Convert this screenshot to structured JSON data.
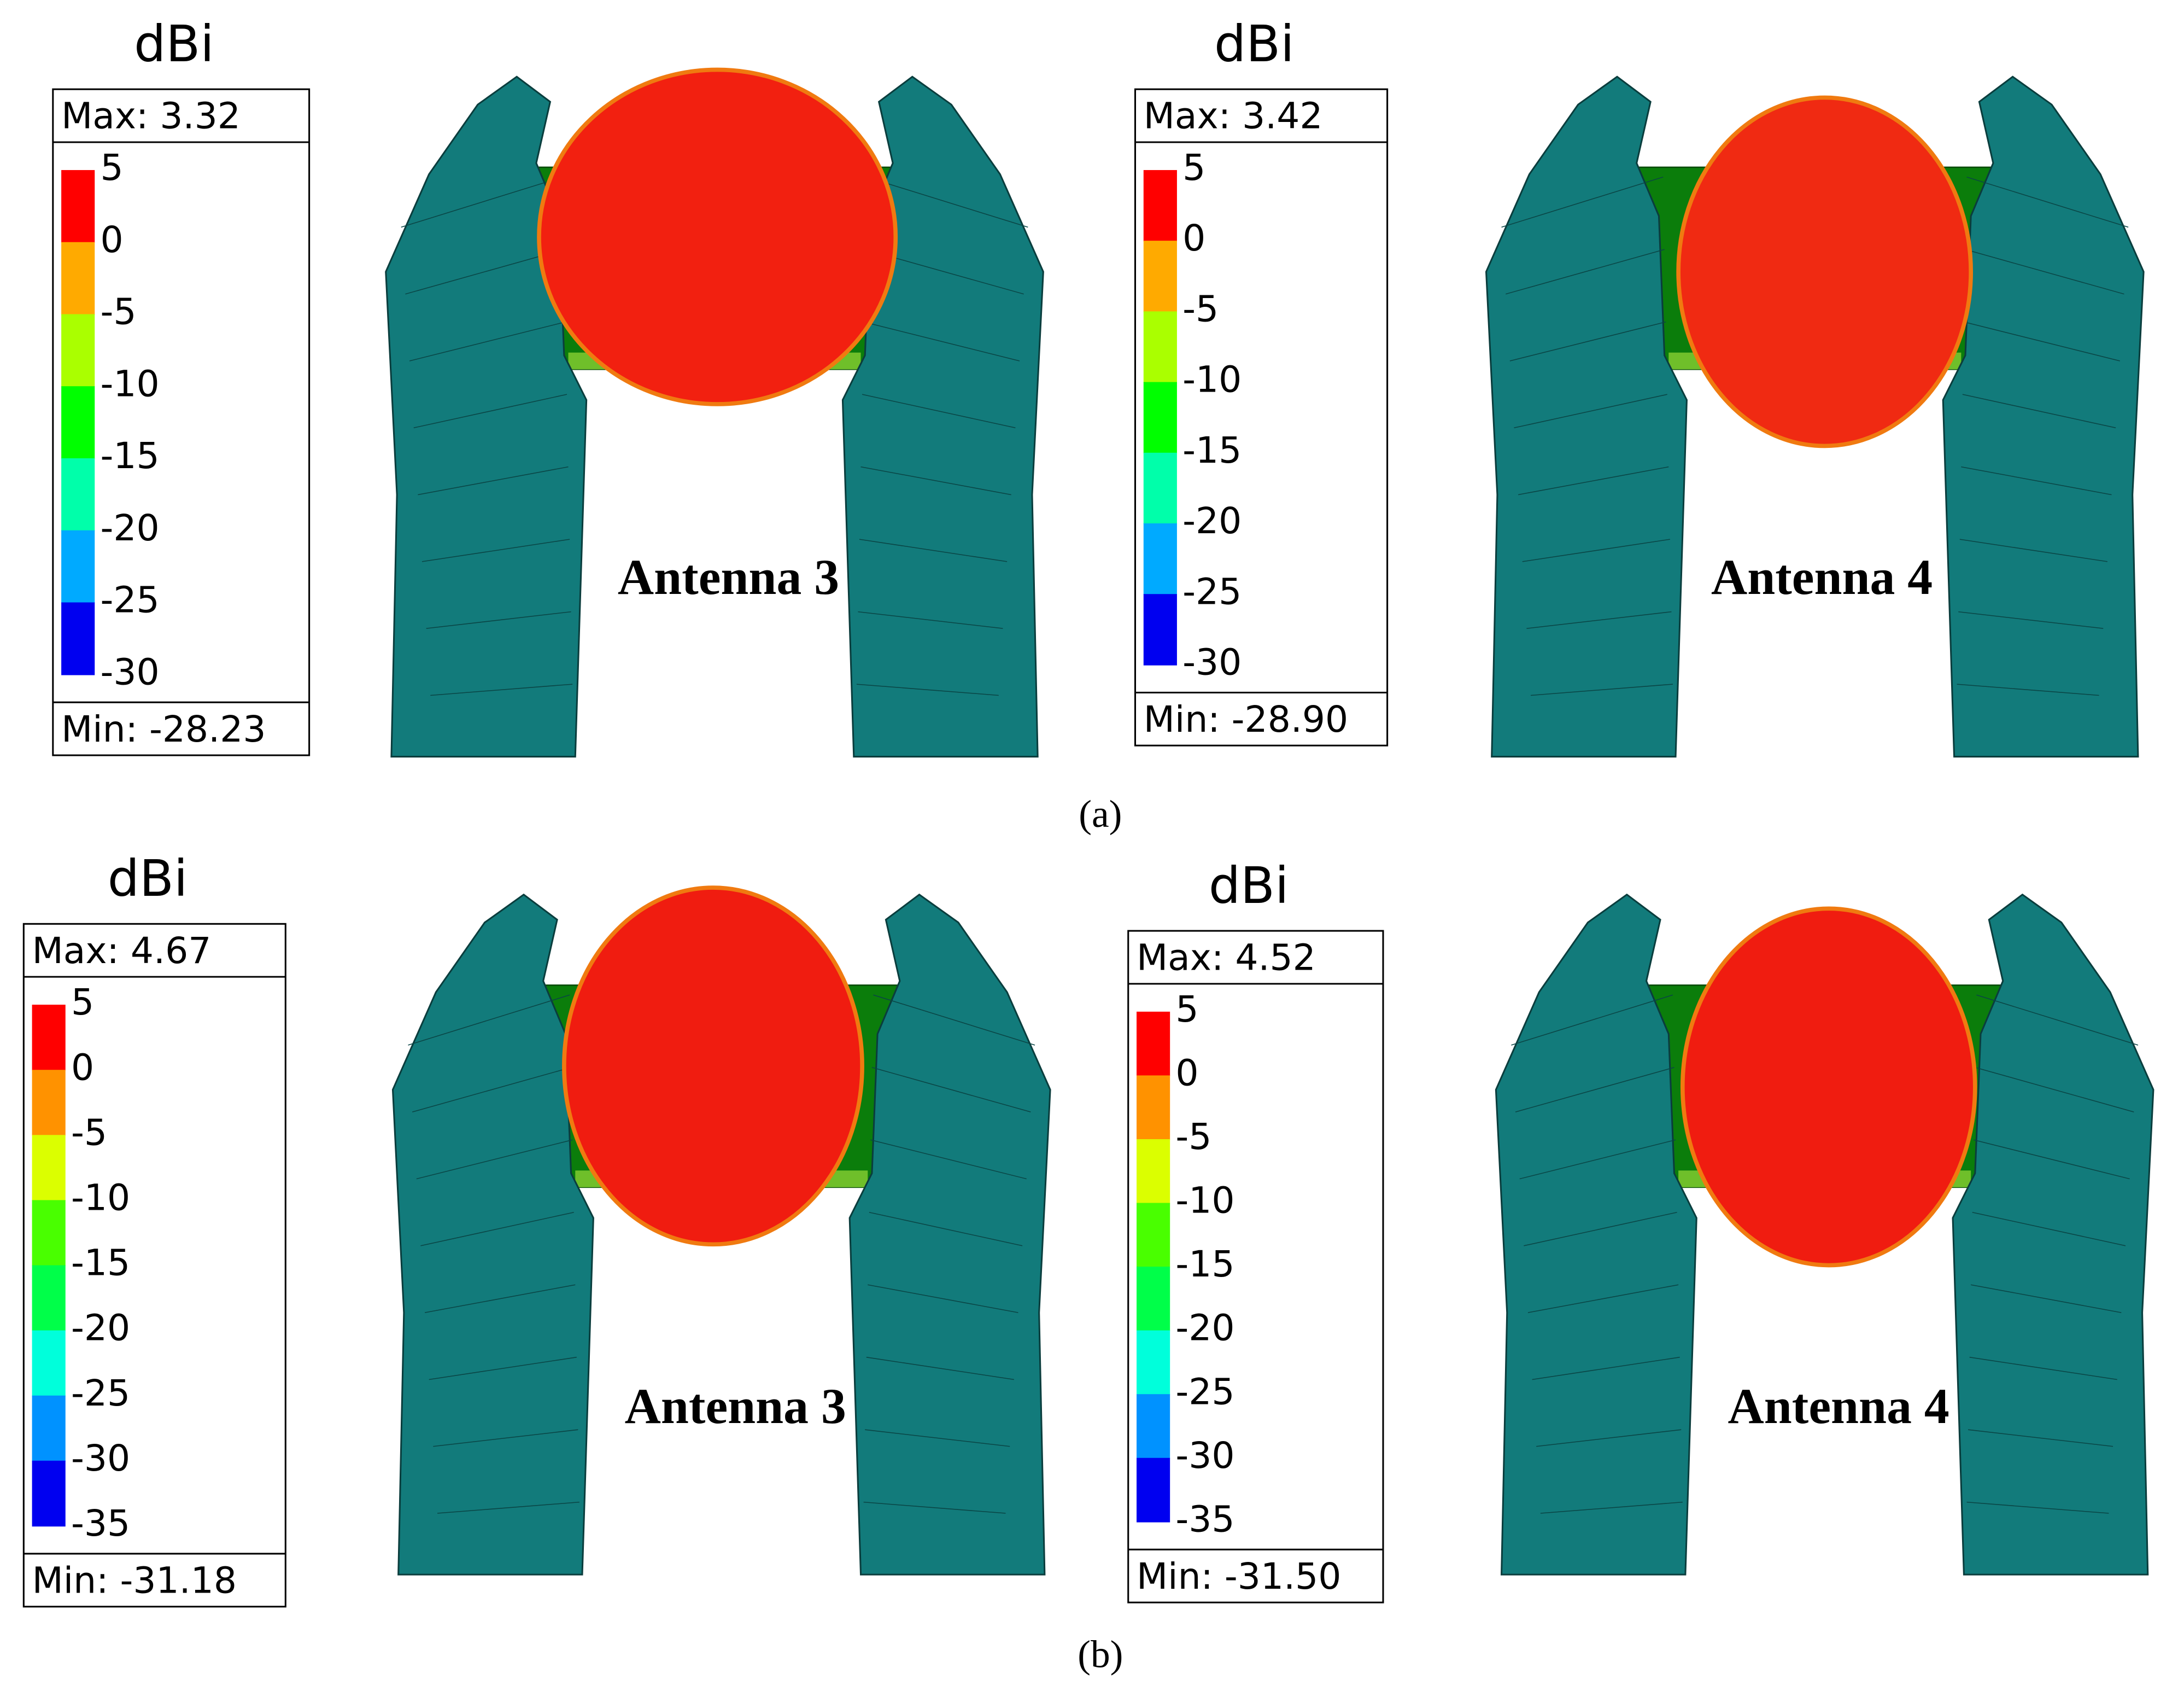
{
  "rows": [
    {
      "caption": "(a)",
      "panels": [
        {
          "unit": "dBi",
          "max": "Max: 3.32",
          "scale": [
            "5",
            "0",
            "-5",
            "-10",
            "-15",
            "-20",
            "-25",
            "-30"
          ],
          "min": "Min: -28.23",
          "antenna": "Antenna 3"
        },
        {
          "unit": "dBi",
          "max": "Max: 3.42",
          "scale": [
            "5",
            "0",
            "-5",
            "-10",
            "-15",
            "-20",
            "-25",
            "-30"
          ],
          "min": "Min: -28.90",
          "antenna": "Antenna 4"
        }
      ]
    },
    {
      "caption": "(b)",
      "panels": [
        {
          "unit": "dBi",
          "max": "Max: 4.67",
          "scale": [
            "5",
            "0",
            "-5",
            "-10",
            "-15",
            "-20",
            "-25",
            "-30",
            "-35"
          ],
          "min": "Min: -31.18",
          "antenna": "Antenna 3"
        },
        {
          "unit": "dBi",
          "max": "Max: 4.52",
          "scale": [
            "5",
            "0",
            "-5",
            "-10",
            "-15",
            "-20",
            "-25",
            "-30",
            "-35"
          ],
          "min": "Min: -31.50",
          "antenna": "Antenna 4"
        }
      ]
    }
  ]
}
